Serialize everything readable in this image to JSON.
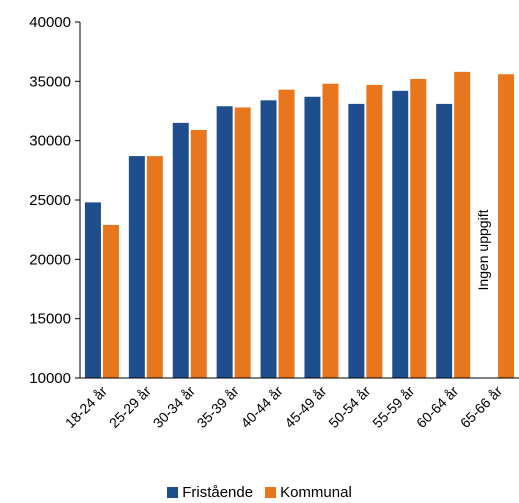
{
  "chart_data": {
    "type": "bar",
    "categories": [
      "18-24 år",
      "25-29 år",
      "30-34 år",
      "35-39 år",
      "40-44 år",
      "45-49 år",
      "50-54 år",
      "55-59 år",
      "60-64 år",
      "65-66 år"
    ],
    "series": [
      {
        "name": "Fristående",
        "color": "#1F4E8C",
        "values": [
          24800,
          28700,
          31500,
          32900,
          33400,
          33700,
          33100,
          34200,
          33100,
          null
        ]
      },
      {
        "name": "Kommunal",
        "color": "#E8761C",
        "values": [
          22900,
          28700,
          30900,
          32800,
          34300,
          34800,
          34700,
          35200,
          35800,
          35600
        ]
      }
    ],
    "ylim": [
      10000,
      40000
    ],
    "yticks": [
      10000,
      15000,
      20000,
      25000,
      30000,
      35000,
      40000
    ],
    "annotation": "Ingen uppgift",
    "legend_position": "bottom"
  }
}
